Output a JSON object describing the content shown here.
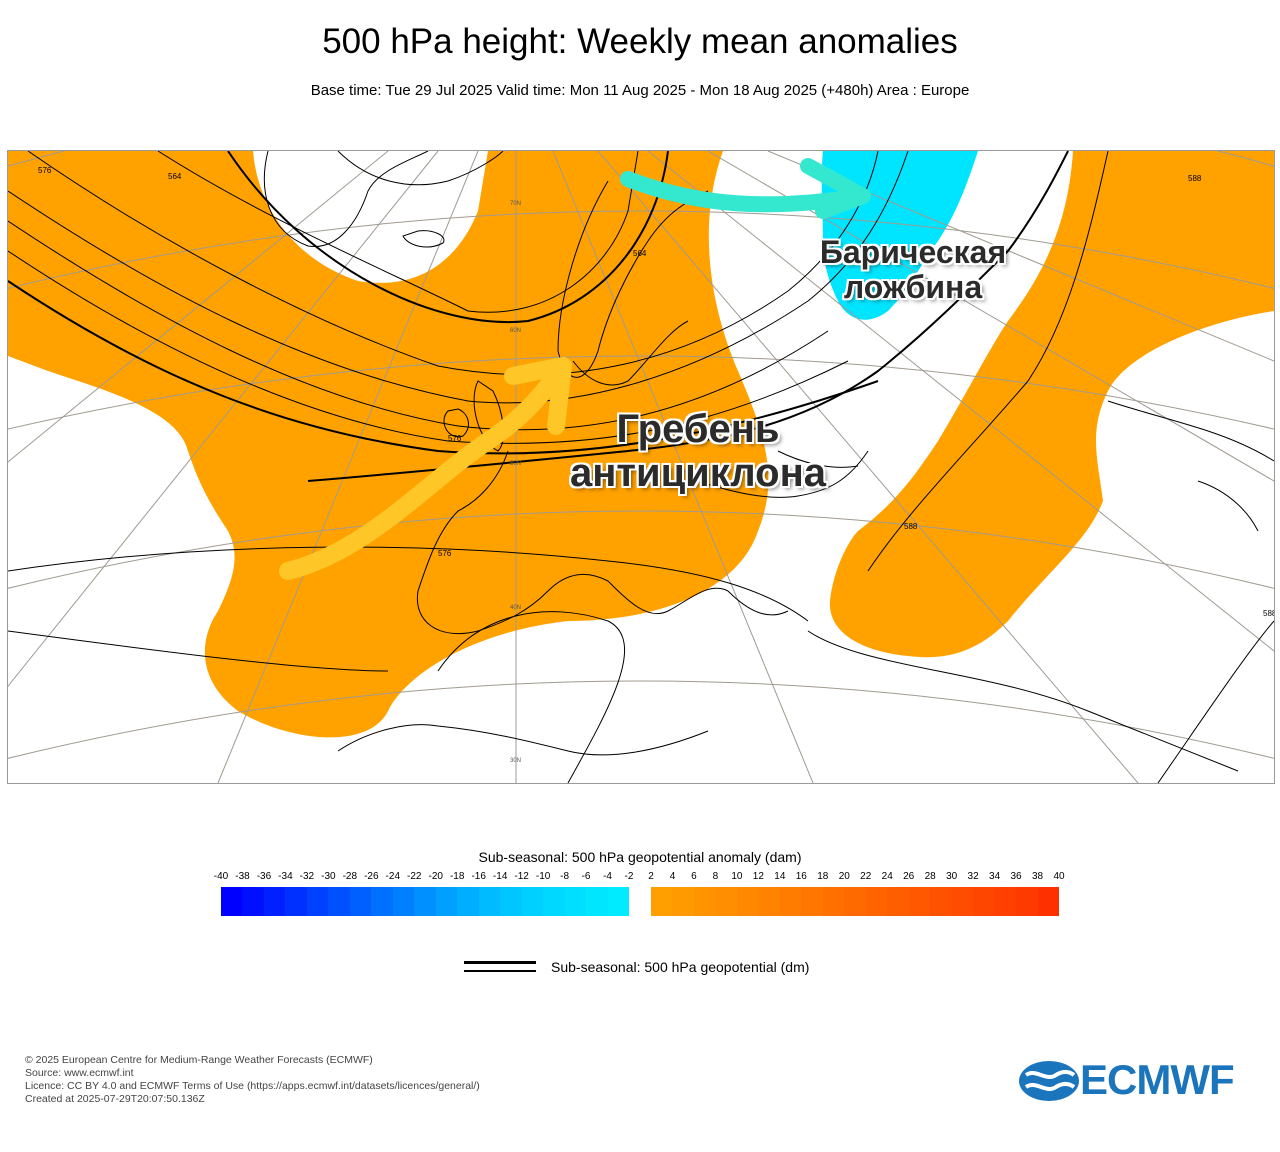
{
  "title": "500 hPa height: Weekly mean anomalies",
  "subtitle": "Base time: Tue 29 Jul 2025 Valid time: Mon 11 Aug 2025 - Mon 18 Aug 2025 (+480h) Area : Europe",
  "map": {
    "annotations": {
      "trough_line1": "Барическая",
      "trough_line2": "ложбина",
      "ridge_line1": "Гребень",
      "ridge_line2": "антициклона"
    },
    "contour_labels": [
      "576",
      "564",
      "576",
      "564",
      "576",
      "588",
      "588",
      "588",
      "588"
    ],
    "lat_labels": [
      "70N",
      "60N",
      "50N",
      "40N",
      "30N"
    ],
    "colors": {
      "positive_anomaly": "#ffa200",
      "negative_anomaly": "#00e5ff",
      "ridge_arrow": "#ffc627",
      "trough_arrow": "#33e8cf",
      "contour": "#000000",
      "coastline": "#000000",
      "graticule": "#a09a90"
    }
  },
  "colorbar": {
    "title": "Sub-seasonal: 500 hPa geopotential anomaly (dam)",
    "ticks": [
      "-40",
      "-38",
      "-36",
      "-34",
      "-32",
      "-30",
      "-28",
      "-26",
      "-24",
      "-22",
      "-20",
      "-18",
      "-16",
      "-14",
      "-12",
      "-10",
      "-8",
      "-6",
      "-4",
      "-2",
      "2",
      "4",
      "6",
      "8",
      "10",
      "12",
      "14",
      "16",
      "18",
      "20",
      "22",
      "24",
      "26",
      "28",
      "30",
      "32",
      "34",
      "36",
      "38",
      "40"
    ],
    "negative_colors": [
      "#0000ff",
      "#0010ff",
      "#0020ff",
      "#0030ff",
      "#0040ff",
      "#0050ff",
      "#0060ff",
      "#0070ff",
      "#0080ff",
      "#0090ff",
      "#00a0ff",
      "#00aeff",
      "#00bbff",
      "#00c6ff",
      "#00d0ff",
      "#00d8ff",
      "#00dfff",
      "#00e6ff",
      "#00ebff"
    ],
    "positive_colors": [
      "#ffa000",
      "#ff9a00",
      "#ff9400",
      "#ff8e00",
      "#ff8800",
      "#ff8200",
      "#ff7c00",
      "#ff7600",
      "#ff7000",
      "#ff6a00",
      "#ff6400",
      "#ff5e00",
      "#ff5800",
      "#ff5200",
      "#ff4c00",
      "#ff4600",
      "#ff4000",
      "#ff3a00",
      "#ff3000"
    ]
  },
  "legend": {
    "contour_label": "Sub-seasonal: 500 hPa geopotential (dm)"
  },
  "footer": {
    "line1": "© 2025 European Centre for Medium-Range Weather Forecasts (ECMWF)",
    "line2": "Source: www.ecmwf.int",
    "line3": "Licence: CC BY 4.0 and ECMWF Terms of Use (https://apps.ecmwf.int/datasets/licences/general/)",
    "line4": "Created at 2025-07-29T20:07:50.136Z"
  },
  "logo": {
    "text": "ECMWF",
    "color": "#1b75bc"
  }
}
